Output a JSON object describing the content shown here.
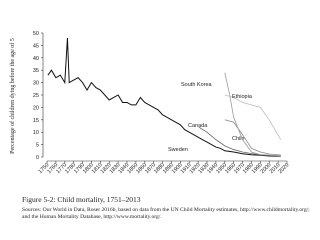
{
  "chart_data": {
    "type": "line",
    "y_label": "Percentage of children dying before the age of 5",
    "caption": "Figure 5-2: Child mortality, 1751–2013",
    "sources": "Sources: Our World in Data, Roser 2016b, based on data from the UN Child Mortality estimates, http://www.childmortality.org/; and the Human Mortality Database, http://www.mortality.org/.",
    "xlim": [
      1750,
      2020
    ],
    "xticks": [
      1750,
      1760,
      1770,
      1780,
      1790,
      1800,
      1810,
      1820,
      1830,
      1840,
      1850,
      1860,
      1870,
      1880,
      1890,
      1900,
      1910,
      1920,
      1930,
      1940,
      1950,
      1960,
      1970,
      1980,
      1990,
      2000,
      2010,
      2020
    ],
    "ylim": [
      0,
      50
    ],
    "yticks": [
      0,
      5,
      10,
      15,
      20,
      25,
      30,
      35,
      40,
      45,
      50
    ],
    "series": [
      {
        "name": "Sweden",
        "color": "#111111",
        "x": [
          1751,
          1755,
          1760,
          1765,
          1770,
          1773,
          1775,
          1780,
          1785,
          1790,
          1795,
          1800,
          1805,
          1810,
          1815,
          1820,
          1825,
          1830,
          1835,
          1840,
          1845,
          1850,
          1855,
          1860,
          1865,
          1870,
          1875,
          1880,
          1885,
          1890,
          1895,
          1900,
          1905,
          1910,
          1915,
          1920,
          1925,
          1930,
          1935,
          1940,
          1945,
          1950,
          1960,
          1970,
          1980,
          1990,
          2000,
          2013
        ],
        "values": [
          33,
          35,
          32,
          33,
          30,
          48,
          30,
          31,
          32,
          30,
          27,
          30,
          28,
          27,
          25,
          23,
          24,
          25,
          22,
          22,
          21,
          21,
          24,
          22,
          21,
          20,
          19,
          17,
          16,
          15,
          14,
          13,
          11,
          10,
          9,
          8,
          7,
          6,
          5,
          4,
          3.5,
          2.5,
          2,
          1.3,
          0.9,
          0.7,
          0.4,
          0.3
        ]
      },
      {
        "name": "Canada",
        "color": "#666666",
        "x": [
          1921,
          1930,
          1940,
          1950,
          1960,
          1970,
          1990,
          2013
        ],
        "values": [
          12,
          10,
          7,
          4.5,
          3,
          2,
          0.8,
          0.5
        ]
      },
      {
        "name": "Chile",
        "color": "#888888",
        "x": [
          1950,
          1960,
          1970,
          1980,
          1990,
          2000,
          2013
        ],
        "values": [
          15,
          14,
          9,
          3.5,
          2,
          1.2,
          0.8
        ]
      },
      {
        "name": "South Korea",
        "color": "#999999",
        "x": [
          1950,
          1955,
          1960,
          1970,
          1980,
          1990,
          2013
        ],
        "values": [
          34,
          26,
          16,
          7,
          2,
          1,
          0.4
        ]
      },
      {
        "name": "Ethiopia",
        "color": "#bbbbbb",
        "x": [
          1950,
          1960,
          1970,
          1980,
          1990,
          2000,
          2013
        ],
        "values": [
          25,
          24,
          22,
          21,
          20,
          15,
          7
        ]
      }
    ]
  }
}
